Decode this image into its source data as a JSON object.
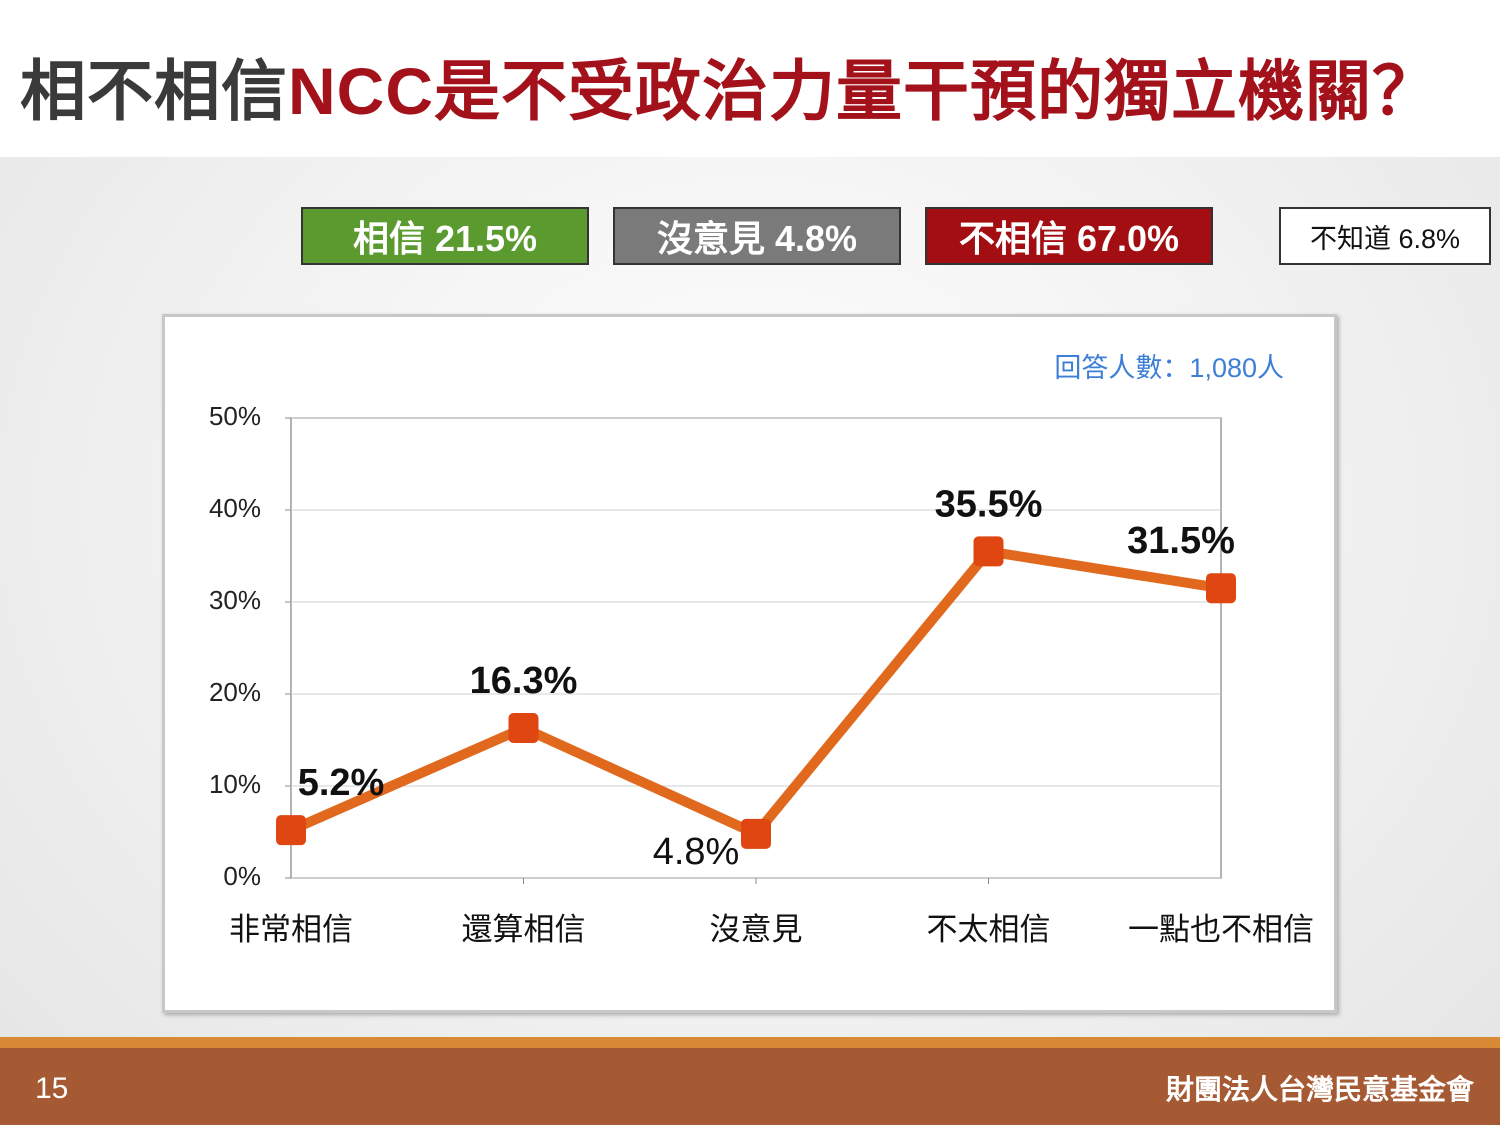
{
  "title": {
    "lead": "相不相信",
    "main": "NCC是不受政治力量干預的獨立機關？"
  },
  "summary": [
    {
      "label": "相信 21.5%",
      "color": "#5a9a2e"
    },
    {
      "label": "沒意見 4.8%",
      "color": "#7a7a7a"
    },
    {
      "label": "不相信 67.0%",
      "color": "#a30e12"
    },
    {
      "label": "不知道 6.8%",
      "color": "#ffffff"
    }
  ],
  "chart_data": {
    "type": "line",
    "note": "回答人數：1,080人",
    "categories": [
      "非常相信",
      "還算相信",
      "沒意見",
      "不太相信",
      "一點也不相信"
    ],
    "values": [
      5.2,
      16.3,
      4.8,
      35.5,
      31.5
    ],
    "value_labels": [
      "5.2%",
      "16.3%",
      "4.8%",
      "35.5%",
      "31.5%"
    ],
    "color": "#e0691e",
    "marker_color": "#e04612",
    "ylim": [
      0,
      50
    ],
    "yticks": [
      {
        "value": 0,
        "label": "0%"
      },
      {
        "value": 10,
        "label": "10%"
      },
      {
        "value": 20,
        "label": "20%"
      },
      {
        "value": 30,
        "label": "30%"
      },
      {
        "value": 40,
        "label": "40%"
      },
      {
        "value": 50,
        "label": "50%"
      }
    ],
    "grid": true
  },
  "footer": {
    "page": 15,
    "organization": "財團法人台灣民意基金會"
  }
}
